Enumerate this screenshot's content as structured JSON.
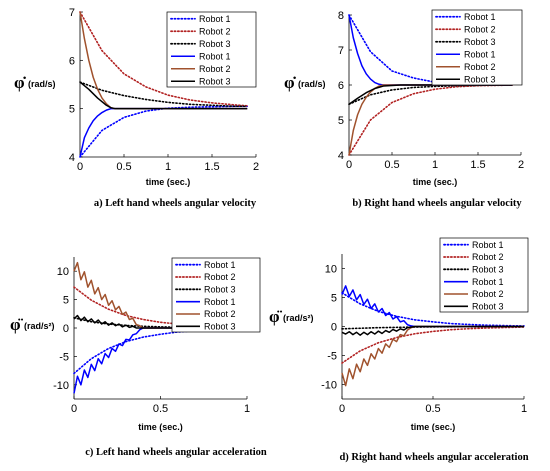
{
  "chart_data": [
    {
      "id": "a",
      "type": "line",
      "caption": "a) Left hand wheels angular velocity",
      "ylabel_symbol": "φ̇",
      "ylabel_unit": "(rad/s)",
      "xlabel": "time (sec.)",
      "xlim": [
        0,
        2
      ],
      "ylim": [
        4,
        7
      ],
      "xticks": [
        "0",
        "0.5",
        "1",
        "1.5",
        "2"
      ],
      "yticks": [
        "4",
        "5",
        "6",
        "7"
      ],
      "legend_position": "top-right",
      "series": [
        {
          "name": "Robot 1",
          "style": "dotted",
          "color": "#0000ff",
          "x": [
            0,
            0.25,
            0.5,
            0.75,
            1.0,
            1.25,
            1.5,
            1.75,
            1.9
          ],
          "y": [
            4.0,
            4.55,
            4.82,
            4.95,
            5.01,
            5.03,
            5.04,
            5.05,
            5.05
          ]
        },
        {
          "name": "Robot 2",
          "style": "dotted",
          "color": "#b22222",
          "x": [
            0,
            0.25,
            0.5,
            0.75,
            1.0,
            1.25,
            1.5,
            1.75,
            1.9
          ],
          "y": [
            7.0,
            6.2,
            5.72,
            5.45,
            5.28,
            5.18,
            5.12,
            5.08,
            5.06
          ]
        },
        {
          "name": "Robot 3",
          "style": "dotted",
          "color": "#000000",
          "x": [
            0,
            0.25,
            0.5,
            0.75,
            1.0,
            1.25,
            1.5,
            1.75,
            1.9
          ],
          "y": [
            5.55,
            5.38,
            5.27,
            5.19,
            5.13,
            5.09,
            5.07,
            5.05,
            5.05
          ]
        },
        {
          "name": "Robot 1",
          "style": "solid",
          "color": "#0000ff",
          "x": [
            0,
            0.05,
            0.1,
            0.15,
            0.2,
            0.25,
            0.3,
            0.35,
            0.4,
            0.6,
            1.0,
            1.5,
            1.9
          ],
          "y": [
            4.0,
            4.4,
            4.6,
            4.75,
            4.85,
            4.92,
            4.97,
            5.0,
            5.0,
            5.0,
            5.0,
            5.0,
            5.0
          ]
        },
        {
          "name": "Robot 2",
          "style": "solid",
          "color": "#a0522d",
          "x": [
            0,
            0.05,
            0.1,
            0.15,
            0.2,
            0.25,
            0.3,
            0.35,
            0.4,
            0.6,
            1.0,
            1.5,
            1.9
          ],
          "y": [
            7.0,
            6.45,
            6.0,
            5.65,
            5.4,
            5.22,
            5.1,
            5.02,
            5.0,
            5.0,
            5.0,
            5.0,
            5.0
          ]
        },
        {
          "name": "Robot 3",
          "style": "solid",
          "color": "#000000",
          "x": [
            0,
            0.1,
            0.2,
            0.3,
            0.35,
            0.4,
            0.6,
            1.0,
            1.5,
            1.9
          ],
          "y": [
            5.55,
            5.4,
            5.22,
            5.07,
            5.02,
            5.0,
            5.0,
            5.0,
            5.0,
            5.0
          ]
        }
      ]
    },
    {
      "id": "b",
      "type": "line",
      "caption": "b) Right hand wheels angular velocity",
      "ylabel_symbol": "φ̇",
      "ylabel_unit": "(rad/s)",
      "xlabel": "time (sec.)",
      "xlim": [
        0,
        2
      ],
      "ylim": [
        4,
        8
      ],
      "xticks": [
        "0",
        "0.5",
        "1",
        "1.5",
        "2"
      ],
      "yticks": [
        "4",
        "5",
        "6",
        "7",
        "8"
      ],
      "legend_position": "top-right",
      "series": [
        {
          "name": "Robot 1",
          "style": "dotted",
          "color": "#0000ff",
          "x": [
            0,
            0.25,
            0.5,
            0.75,
            1.0,
            1.25,
            1.5,
            1.75,
            1.9
          ],
          "y": [
            8.0,
            6.95,
            6.4,
            6.2,
            6.08,
            6.03,
            6.01,
            6.0,
            6.0
          ]
        },
        {
          "name": "Robot 2",
          "style": "dotted",
          "color": "#b22222",
          "x": [
            0,
            0.25,
            0.5,
            0.75,
            1.0,
            1.25,
            1.5,
            1.75,
            1.9
          ],
          "y": [
            4.0,
            5.0,
            5.5,
            5.75,
            5.88,
            5.95,
            5.98,
            5.99,
            6.0
          ]
        },
        {
          "name": "Robot 3",
          "style": "dotted",
          "color": "#000000",
          "x": [
            0,
            0.25,
            0.5,
            0.75,
            1.0,
            1.25,
            1.5,
            1.75,
            1.9
          ],
          "y": [
            5.45,
            5.72,
            5.86,
            5.93,
            5.96,
            5.98,
            5.99,
            6.0,
            6.0
          ]
        },
        {
          "name": "Robot 1",
          "style": "solid",
          "color": "#0000ff",
          "x": [
            0,
            0.05,
            0.1,
            0.15,
            0.2,
            0.25,
            0.3,
            0.35,
            0.4,
            0.6,
            1.0,
            1.5,
            1.9
          ],
          "y": [
            8.0,
            7.35,
            6.9,
            6.55,
            6.32,
            6.17,
            6.07,
            6.02,
            6.0,
            6.0,
            6.0,
            6.0,
            6.0
          ]
        },
        {
          "name": "Robot 2",
          "style": "solid",
          "color": "#a0522d",
          "x": [
            0,
            0.05,
            0.1,
            0.15,
            0.2,
            0.25,
            0.3,
            0.35,
            0.4,
            0.6,
            1.0,
            1.5,
            1.9
          ],
          "y": [
            4.0,
            4.7,
            5.15,
            5.45,
            5.65,
            5.8,
            5.9,
            5.97,
            6.0,
            6.0,
            6.0,
            6.0,
            6.0
          ]
        },
        {
          "name": "Robot 3",
          "style": "solid",
          "color": "#000000",
          "x": [
            0,
            0.1,
            0.2,
            0.3,
            0.4,
            0.6,
            1.0,
            1.5,
            1.9
          ],
          "y": [
            5.45,
            5.62,
            5.78,
            5.9,
            5.97,
            6.0,
            6.0,
            6.0,
            6.0
          ]
        }
      ]
    },
    {
      "id": "c",
      "type": "line",
      "caption": "c) Left hand wheels angular acceleration",
      "ylabel_symbol": "φ̈",
      "ylabel_unit": "(rad/s²)",
      "xlabel": "time (sec.)",
      "xlim": [
        0,
        1
      ],
      "ylim": [
        -12.5,
        12.5
      ],
      "xticks": [
        "0",
        "0.5",
        "1"
      ],
      "yticks": [
        "10",
        "5",
        "0",
        "-5",
        "-10"
      ],
      "legend_position": "top-right",
      "series": [
        {
          "name": "Robot 1",
          "style": "dotted",
          "color": "#0000ff",
          "x": [
            0,
            0.1,
            0.2,
            0.3,
            0.4,
            0.5,
            0.6,
            0.7,
            0.8,
            0.9,
            1.0
          ],
          "y": [
            -8.0,
            -5.4,
            -3.6,
            -2.4,
            -1.6,
            -1.1,
            -0.7,
            -0.5,
            -0.3,
            -0.2,
            -0.1
          ]
        },
        {
          "name": "Robot 2",
          "style": "dotted",
          "color": "#b22222",
          "x": [
            0,
            0.1,
            0.2,
            0.3,
            0.4,
            0.5,
            0.6,
            0.7,
            0.8,
            0.9,
            1.0
          ],
          "y": [
            7.2,
            4.9,
            3.3,
            2.2,
            1.5,
            1.0,
            0.7,
            0.45,
            0.3,
            0.2,
            0.1
          ]
        },
        {
          "name": "Robot 3",
          "style": "dotted",
          "color": "#000000",
          "x": [
            0,
            0.1,
            0.2,
            0.3,
            0.4,
            0.5,
            0.6,
            0.7,
            0.8,
            0.9,
            1.0
          ],
          "y": [
            1.8,
            1.1,
            0.7,
            0.45,
            0.3,
            0.2,
            0.12,
            0.08,
            0.05,
            0.03,
            0.02
          ]
        },
        {
          "name": "Robot 1",
          "style": "solid",
          "color": "#0000ff",
          "x": [
            0,
            0.02,
            0.04,
            0.06,
            0.08,
            0.1,
            0.12,
            0.14,
            0.16,
            0.18,
            0.2,
            0.22,
            0.24,
            0.26,
            0.28,
            0.3,
            0.32,
            0.34,
            0.36,
            0.38,
            0.4,
            0.5,
            0.6,
            0.8,
            1.0
          ],
          "y": [
            -11.5,
            -8.5,
            -10.0,
            -7.4,
            -8.7,
            -6.4,
            -7.5,
            -5.4,
            -6.3,
            -4.5,
            -5.2,
            -3.6,
            -4.1,
            -2.8,
            -3.1,
            -2.0,
            -2.1,
            -1.2,
            -1.0,
            -0.3,
            0,
            0,
            0,
            0,
            0
          ]
        },
        {
          "name": "Robot 2",
          "style": "solid",
          "color": "#a0522d",
          "x": [
            0,
            0.02,
            0.04,
            0.06,
            0.08,
            0.1,
            0.12,
            0.14,
            0.16,
            0.18,
            0.2,
            0.22,
            0.24,
            0.26,
            0.28,
            0.3,
            0.32,
            0.34,
            0.36,
            0.38,
            0.4,
            0.5,
            0.6,
            0.8,
            1.0
          ],
          "y": [
            10.0,
            11.5,
            8.5,
            9.9,
            7.2,
            8.4,
            6.0,
            7.1,
            5.0,
            5.9,
            4.0,
            4.8,
            3.2,
            3.8,
            2.4,
            2.8,
            1.5,
            1.7,
            0.6,
            0.4,
            0,
            0,
            0,
            0,
            0
          ]
        },
        {
          "name": "Robot 3",
          "style": "solid",
          "color": "#000000",
          "x": [
            0,
            0.02,
            0.04,
            0.06,
            0.08,
            0.1,
            0.12,
            0.14,
            0.16,
            0.18,
            0.2,
            0.22,
            0.24,
            0.26,
            0.28,
            0.3,
            0.32,
            0.34,
            0.36,
            0.4,
            0.5,
            0.6,
            0.8,
            1.0
          ],
          "y": [
            1.6,
            2.2,
            1.3,
            1.9,
            1.1,
            1.6,
            0.9,
            1.4,
            0.7,
            1.1,
            0.5,
            0.9,
            0.4,
            0.7,
            0.2,
            0.5,
            0.1,
            0.3,
            0,
            0,
            0,
            0,
            0,
            0
          ]
        }
      ]
    },
    {
      "id": "d",
      "type": "line",
      "caption": "d) Right hand wheels angular acceleration",
      "ylabel_symbol": "φ̈",
      "ylabel_unit": "(rad/s²)",
      "xlabel": "time (sec.)",
      "xlim": [
        0,
        1
      ],
      "ylim": [
        -12.5,
        12.5
      ],
      "xticks": [
        "0",
        "0.5",
        "1"
      ],
      "yticks": [
        "10",
        "5",
        "0",
        "-5",
        "-10"
      ],
      "legend_position": "top-right",
      "series": [
        {
          "name": "Robot 1",
          "style": "dotted",
          "color": "#0000ff",
          "x": [
            0,
            0.1,
            0.2,
            0.3,
            0.4,
            0.5,
            0.6,
            0.7,
            0.8,
            0.9,
            1.0
          ],
          "y": [
            5.8,
            3.9,
            2.6,
            1.75,
            1.15,
            0.8,
            0.5,
            0.35,
            0.22,
            0.15,
            0.1
          ]
        },
        {
          "name": "Robot 2",
          "style": "dotted",
          "color": "#b22222",
          "x": [
            0,
            0.1,
            0.2,
            0.3,
            0.4,
            0.5,
            0.6,
            0.7,
            0.8,
            0.9,
            1.0
          ],
          "y": [
            -6.3,
            -4.2,
            -2.8,
            -1.9,
            -1.25,
            -0.85,
            -0.55,
            -0.37,
            -0.25,
            -0.17,
            -0.1
          ]
        },
        {
          "name": "Robot 3",
          "style": "dotted",
          "color": "#000000",
          "x": [
            0,
            0.1,
            0.2,
            0.3,
            0.4,
            0.5,
            0.6,
            0.7,
            0.8,
            0.9,
            1.0
          ],
          "y": [
            -0.4,
            -0.3,
            -0.2,
            -0.15,
            -0.1,
            -0.07,
            -0.05,
            -0.03,
            -0.02,
            -0.01,
            0
          ]
        },
        {
          "name": "Robot 1",
          "style": "solid",
          "color": "#0000ff",
          "x": [
            0,
            0.02,
            0.04,
            0.06,
            0.08,
            0.1,
            0.12,
            0.14,
            0.16,
            0.18,
            0.2,
            0.22,
            0.24,
            0.26,
            0.28,
            0.3,
            0.32,
            0.34,
            0.36,
            0.38,
            0.4,
            0.5,
            0.6,
            0.8,
            1.0
          ],
          "y": [
            5.5,
            7.0,
            5.2,
            6.3,
            4.6,
            5.5,
            3.8,
            4.7,
            3.1,
            3.9,
            2.5,
            3.1,
            1.9,
            2.4,
            1.3,
            1.7,
            0.8,
            1.0,
            0.3,
            0.1,
            0,
            0,
            0,
            0,
            0
          ]
        },
        {
          "name": "Robot 2",
          "style": "solid",
          "color": "#a0522d",
          "x": [
            0,
            0.02,
            0.04,
            0.06,
            0.08,
            0.1,
            0.12,
            0.14,
            0.16,
            0.18,
            0.2,
            0.22,
            0.24,
            0.26,
            0.28,
            0.3,
            0.32,
            0.34,
            0.36,
            0.38,
            0.4,
            0.5,
            0.6,
            0.8,
            1.0
          ],
          "y": [
            -8.0,
            -10.2,
            -7.3,
            -9.0,
            -6.5,
            -7.8,
            -5.6,
            -6.7,
            -4.7,
            -5.6,
            -3.8,
            -4.6,
            -3.0,
            -3.6,
            -2.2,
            -2.6,
            -1.4,
            -1.6,
            -0.6,
            -0.2,
            0,
            0,
            0,
            0,
            0
          ]
        },
        {
          "name": "Robot 3",
          "style": "solid",
          "color": "#000000",
          "x": [
            0,
            0.02,
            0.04,
            0.06,
            0.08,
            0.1,
            0.12,
            0.14,
            0.16,
            0.18,
            0.2,
            0.22,
            0.24,
            0.26,
            0.28,
            0.3,
            0.32,
            0.34,
            0.36,
            0.38,
            0.4,
            0.5,
            0.6,
            0.8,
            1.0
          ],
          "y": [
            -1.0,
            -1.3,
            -0.9,
            -1.4,
            -1.0,
            -1.5,
            -1.0,
            -1.4,
            -0.9,
            -1.3,
            -0.8,
            -1.2,
            -0.7,
            -1.0,
            -0.5,
            -0.8,
            -0.4,
            -0.6,
            -0.2,
            -0.1,
            0,
            0,
            0,
            0,
            0
          ]
        }
      ]
    }
  ]
}
